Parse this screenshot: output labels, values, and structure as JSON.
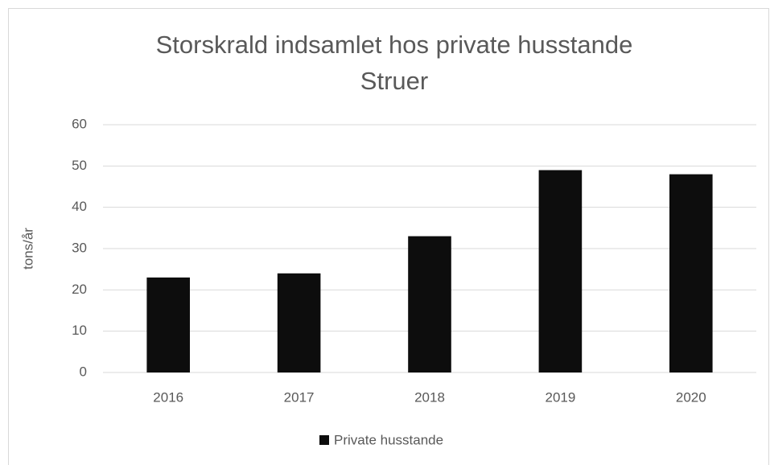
{
  "chart_data": {
    "type": "bar",
    "title": [
      "Storskrald indsamlet hos private husstande",
      "Struer"
    ],
    "y_label": "tons/år",
    "categories": [
      "2016",
      "2017",
      "2018",
      "2019",
      "2020"
    ],
    "series": [
      {
        "name": "Private husstande",
        "color": "#0d0d0d",
        "values": [
          23,
          24,
          33,
          49,
          48
        ]
      }
    ],
    "ylim": [
      0,
      60
    ],
    "yticks": [
      0,
      10,
      20,
      30,
      40,
      50,
      60
    ],
    "grid": true,
    "legend": "bottom"
  }
}
